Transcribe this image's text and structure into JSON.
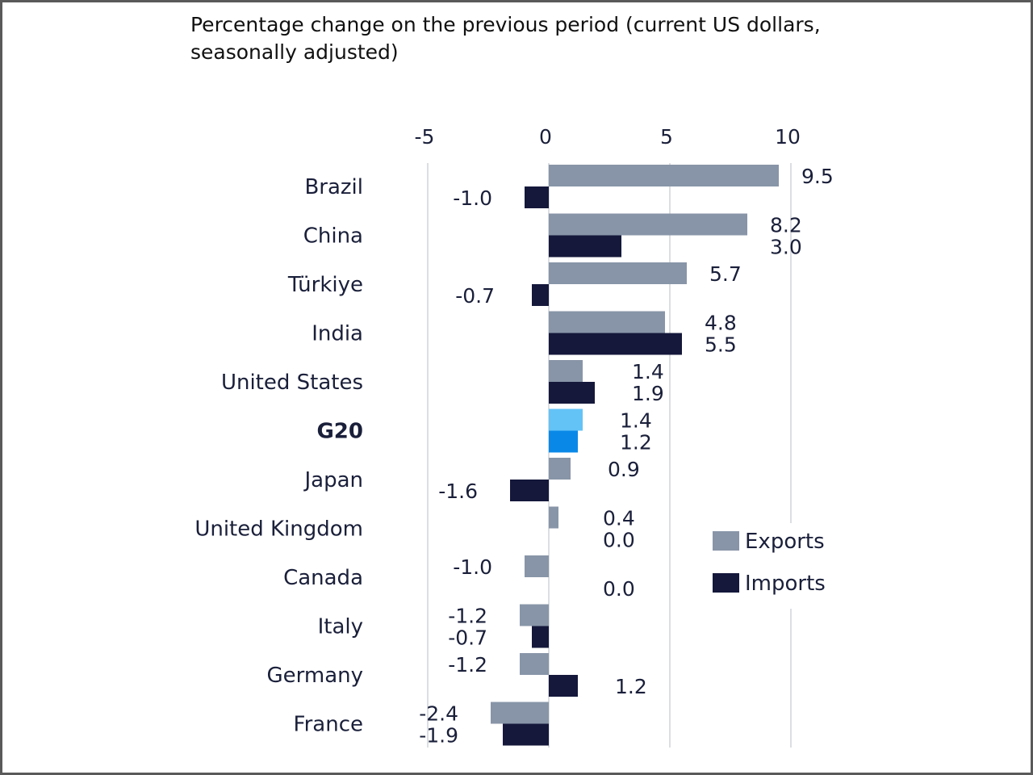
{
  "title": "Percentage change on the previous period (current US dollars, seasonally adjusted)",
  "chart_data": {
    "type": "bar",
    "orientation": "horizontal",
    "title": "Percentage change on the previous period (current US dollars, seasonally adjusted)",
    "xlim": [
      -5,
      10
    ],
    "x_ticks": [
      "-5",
      "0",
      "5",
      "10"
    ],
    "grid": true,
    "legend_position": "right",
    "categories": [
      "Brazil",
      "China",
      "Türkiye",
      "India",
      "United States",
      "G20",
      "Japan",
      "United Kingdom",
      "Canada",
      "Italy",
      "Germany",
      "France"
    ],
    "highlight_category": "G20",
    "series": [
      {
        "name": "Exports",
        "color": "#8895a8",
        "highlight_color": "#63c3f7",
        "values": [
          9.5,
          8.2,
          5.7,
          4.8,
          1.4,
          1.4,
          0.9,
          0.4,
          -1.0,
          -1.2,
          -1.2,
          -2.4
        ],
        "labels": [
          "9.5",
          "8.2",
          "5.7",
          "4.8",
          "1.4",
          "1.4",
          "0.9",
          "0.4",
          "-1.0",
          "-1.2",
          "-1.2",
          "-2.4"
        ]
      },
      {
        "name": "Imports",
        "color": "#15183b",
        "highlight_color": "#0a88e8",
        "values": [
          -1.0,
          3.0,
          -0.7,
          5.5,
          1.9,
          1.2,
          -1.6,
          0.0,
          0.0,
          -0.7,
          1.2,
          -1.9
        ],
        "labels": [
          "-1.0",
          "3.0",
          "-0.7",
          "5.5",
          "1.9",
          "1.2",
          "-1.6",
          "0.0",
          "0.0",
          "-0.7",
          "1.2",
          "-1.9"
        ]
      }
    ]
  }
}
